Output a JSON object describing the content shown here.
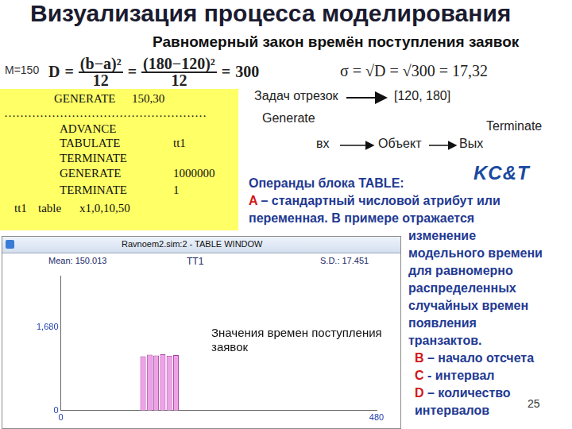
{
  "slide": {
    "title": "Визуализация процесса моделирования",
    "subtitle": "Равномерный закон времён поступления заявок",
    "formulas": {
      "mean": "M=150",
      "variance": [
        "D",
        "=",
        {
          "num": "(b−a)²",
          "den": "12"
        },
        "=",
        {
          "num": "(180−120)²",
          "den": "12"
        },
        "=",
        "300"
      ],
      "sigma": "σ = √D = √300 = 17,32"
    },
    "program": [
      {
        "op": "GENERATE",
        "operand": "150,30"
      },
      {
        "text": "……………………………………………"
      },
      {
        "op": "ADVANCE"
      },
      {
        "op": "TABULATE",
        "operand": "tt1"
      },
      {
        "op": "TERMINATE"
      },
      {
        "op": "GENERATE",
        "operand": "1000000"
      },
      {
        "op": "TERMINATE",
        "operand": "1"
      },
      {
        "label": "tt1",
        "op": "table",
        "operand": "x1,0,10,50"
      }
    ],
    "diagram": {
      "source_label": "Задач отрезок",
      "interval": "[120, 180]",
      "generate": "Generate",
      "terminate": "Terminate",
      "nodes": [
        "вх",
        "Объект",
        "Вых"
      ],
      "logo": "KC&T"
    },
    "operands": {
      "title": "Операнды блока TABLE:",
      "lines": [
        {
          "letter": "A",
          "text": "– стандартный числовой атрибут или"
        },
        {
          "text": "переменная. В примере отражается"
        },
        {
          "text": "изменение"
        },
        {
          "text": "модельного времени"
        },
        {
          "text": "для равномерно"
        },
        {
          "text": "распределенных"
        },
        {
          "text": "случайных времен"
        },
        {
          "text": "появления"
        },
        {
          "text": "транзактов."
        },
        {
          "letter": "B",
          "text": "– начало отсчета"
        },
        {
          "letter": "C",
          "text": "- интервал"
        },
        {
          "letter": "D",
          "text": "– количество"
        },
        {
          "text": "интервалов"
        }
      ]
    },
    "window_title": "Ravnoem2.sim:2 - TABLE WINDOW",
    "page_number": "25"
  },
  "chart_data": {
    "type": "histogram",
    "title": "TT1",
    "annotations": [
      "Mean: 150.013",
      "S.D.: 17.451",
      "Значения времен поступления заявок"
    ],
    "bins": [
      120,
      130,
      140,
      150,
      160,
      170,
      180
    ],
    "values": [
      1090,
      1120,
      1105,
      1130,
      1100,
      1115
    ],
    "color": "#f0a0e8",
    "xlim": [
      0,
      480
    ],
    "xticks": [
      0,
      480
    ],
    "ylim": [
      0,
      2700
    ],
    "yticks": [
      0,
      1680
    ],
    "grid": false
  }
}
